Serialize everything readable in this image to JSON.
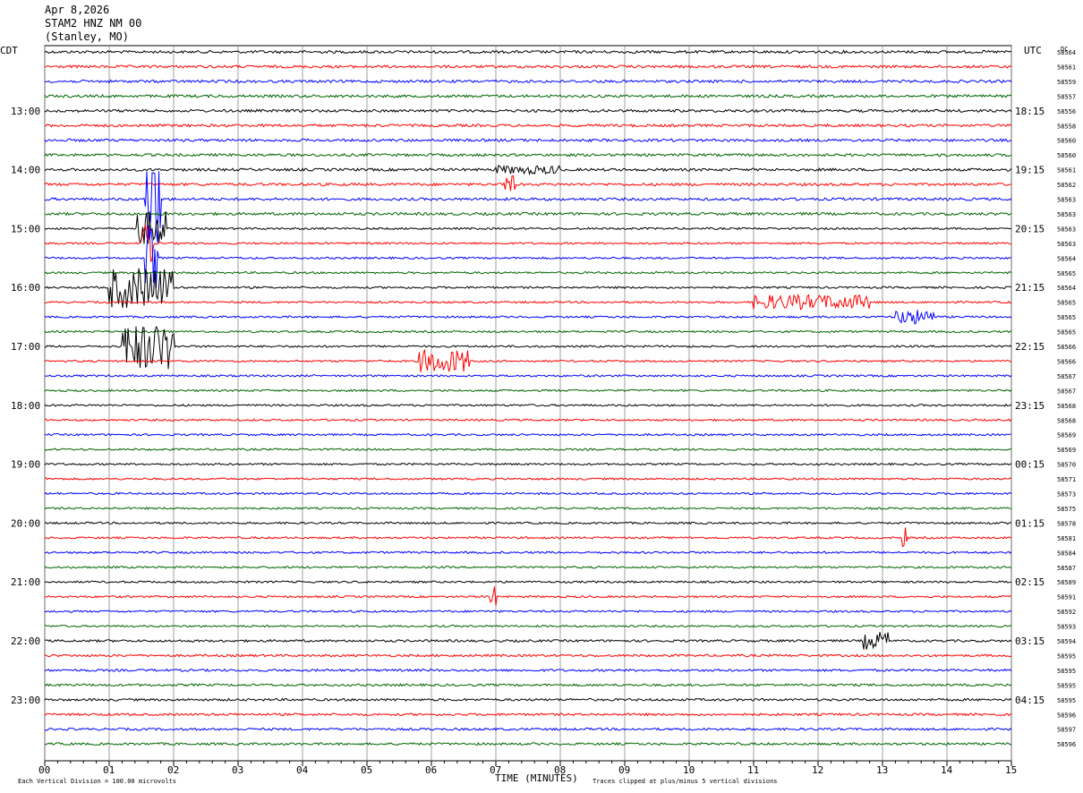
{
  "header": {
    "date": "Apr 8,2026",
    "station": "STAM2 HNZ NM 00",
    "location": "(Stanley, MO)"
  },
  "chart_data": {
    "type": "line",
    "title": "STAM2 HNZ NM 00",
    "xlabel": "TIME (MINUTES)",
    "xlim": [
      0,
      15
    ],
    "x_ticks": [
      "00",
      "01",
      "02",
      "03",
      "04",
      "05",
      "06",
      "07",
      "08",
      "09",
      "10",
      "11",
      "12",
      "13",
      "14",
      "15"
    ],
    "left_axis_label": "CDT",
    "right_axis_label": "UTC",
    "dc_label": "DC",
    "grid": true,
    "trace_colors": [
      "#000000",
      "#ff0000",
      "#0000ff",
      "#006400"
    ],
    "cdt_hour_labels": [
      "13:00",
      "14:00",
      "15:00",
      "16:00",
      "17:00",
      "18:00",
      "19:00",
      "20:00",
      "21:00",
      "22:00",
      "23:00"
    ],
    "utc_hour_labels": [
      "18:15",
      "19:15",
      "20:15",
      "21:15",
      "22:15",
      "23:15",
      "00:15",
      "01:15",
      "02:15",
      "03:15",
      "04:15"
    ],
    "dc_offsets": [
      "58564",
      "58561",
      "58559",
      "58557",
      "58556",
      "58558",
      "58560",
      "58560",
      "58561",
      "58562",
      "58563",
      "58563",
      "58563",
      "58563",
      "58564",
      "58565",
      "58564",
      "58565",
      "58565",
      "58565",
      "58566",
      "58566",
      "58567",
      "58567",
      "58568",
      "58568",
      "58569",
      "58569",
      "58570",
      "58571",
      "58573",
      "58575",
      "58578",
      "58581",
      "58584",
      "58587",
      "58589",
      "58591",
      "58592",
      "58593",
      "58594",
      "58595",
      "58595",
      "58595",
      "58595",
      "58596",
      "58597",
      "58596"
    ],
    "footer_scale": "Each Vertical Division =  100.00 microvolts",
    "footer_clip": "Traces clipped at plus/minus 5 vertical divisions",
    "events": [
      {
        "trace": 10,
        "start_min": 1.55,
        "end_min": 1.8,
        "amp": 3.2
      },
      {
        "trace": 12,
        "start_min": 1.4,
        "end_min": 1.9,
        "amp": 1.2
      },
      {
        "trace": 13,
        "start_min": 1.5,
        "end_min": 1.7,
        "amp": 1.3
      },
      {
        "trace": 14,
        "start_min": 1.55,
        "end_min": 1.75,
        "amp": 2.2
      },
      {
        "trace": 16,
        "start_min": 1.0,
        "end_min": 2.0,
        "amp": 1.4
      },
      {
        "trace": 17,
        "start_min": 11.0,
        "end_min": 12.8,
        "amp": 0.5
      },
      {
        "trace": 18,
        "start_min": 13.2,
        "end_min": 13.8,
        "amp": 0.5
      },
      {
        "trace": 20,
        "start_min": 1.2,
        "end_min": 2.0,
        "amp": 1.6
      },
      {
        "trace": 21,
        "start_min": 5.8,
        "end_min": 6.6,
        "amp": 0.8
      },
      {
        "trace": 9,
        "start_min": 7.1,
        "end_min": 7.3,
        "amp": 0.6
      },
      {
        "trace": 8,
        "start_min": 7.0,
        "end_min": 8.0,
        "amp": 0.3
      },
      {
        "trace": 33,
        "start_min": 13.3,
        "end_min": 13.4,
        "amp": 0.7
      },
      {
        "trace": 37,
        "start_min": 6.9,
        "end_min": 7.0,
        "amp": 0.7
      },
      {
        "trace": 40,
        "start_min": 12.7,
        "end_min": 13.1,
        "amp": 0.6
      }
    ]
  }
}
